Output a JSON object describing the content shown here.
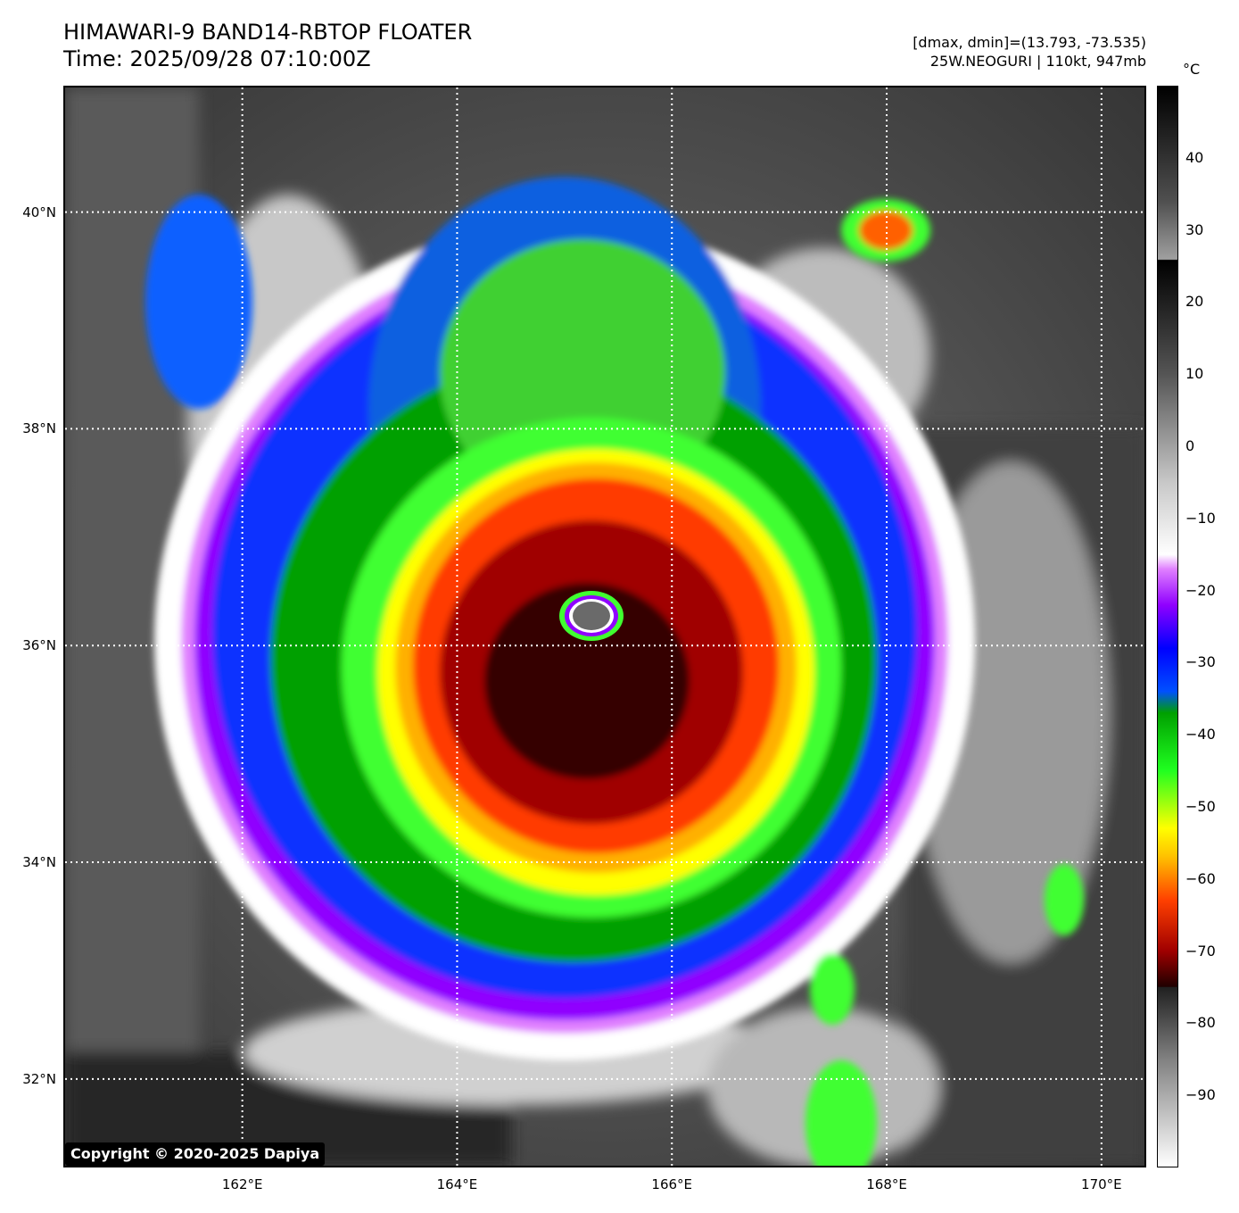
{
  "header": {
    "title_line1": "HIMAWARI-9 BAND14-RBTOP FLOATER",
    "title_line2": "Time: 2025/09/28 07:10:00Z",
    "dmax_dmin": "[dmax, dmin]=(13.793, -73.535)",
    "storm_info": "25W.NEOGURI | 110kt, 947mb"
  },
  "map": {
    "lon_range": [
      160.35,
      170.4
    ],
    "lat_range": [
      31.2,
      41.15
    ],
    "lat_ticks": [
      "40°N",
      "38°N",
      "36°N",
      "34°N",
      "32°N"
    ],
    "lat_values": [
      40,
      38,
      36,
      34,
      32
    ],
    "lon_ticks": [
      "162°E",
      "164°E",
      "166°E",
      "168°E",
      "170°E"
    ],
    "lon_values": [
      162,
      164,
      166,
      168,
      170
    ],
    "gridlines": true,
    "storm_center": {
      "lon": 165.2,
      "lat": 36.25
    }
  },
  "colorbar": {
    "unit": "°C",
    "range": [
      -100,
      50
    ],
    "ticks": [
      "40",
      "30",
      "20",
      "10",
      "0",
      "−10",
      "−20",
      "−30",
      "−40",
      "−50",
      "−60",
      "−70",
      "−80",
      "−90"
    ],
    "tick_values": [
      40,
      30,
      20,
      10,
      0,
      -10,
      -20,
      -30,
      -40,
      -50,
      -60,
      -70,
      -80,
      -90
    ],
    "stops": [
      {
        "t": 50,
        "color": "#000000"
      },
      {
        "t": 34,
        "color": "#505050"
      },
      {
        "t": 26,
        "color": "#a0a0a0"
      },
      {
        "t": 25.9,
        "color": "#000000"
      },
      {
        "t": 10,
        "color": "#555555"
      },
      {
        "t": -5,
        "color": "#c8c8c8"
      },
      {
        "t": -15,
        "color": "#ffffff"
      },
      {
        "t": -17,
        "color": "#e080ff"
      },
      {
        "t": -22,
        "color": "#9000ff"
      },
      {
        "t": -28,
        "color": "#0000ff"
      },
      {
        "t": -34,
        "color": "#0050ff"
      },
      {
        "t": -37,
        "color": "#00a000"
      },
      {
        "t": -45,
        "color": "#20ff20"
      },
      {
        "t": -53,
        "color": "#ffff00"
      },
      {
        "t": -57,
        "color": "#ffc000"
      },
      {
        "t": -63,
        "color": "#ff4000"
      },
      {
        "t": -70,
        "color": "#a00000"
      },
      {
        "t": -75,
        "color": "#200000"
      },
      {
        "t": -75.1,
        "color": "#202020"
      },
      {
        "t": -85,
        "color": "#808080"
      },
      {
        "t": -100,
        "color": "#ffffff"
      }
    ]
  },
  "copyright": "Copyright © 2020-2025 Dapiya"
}
